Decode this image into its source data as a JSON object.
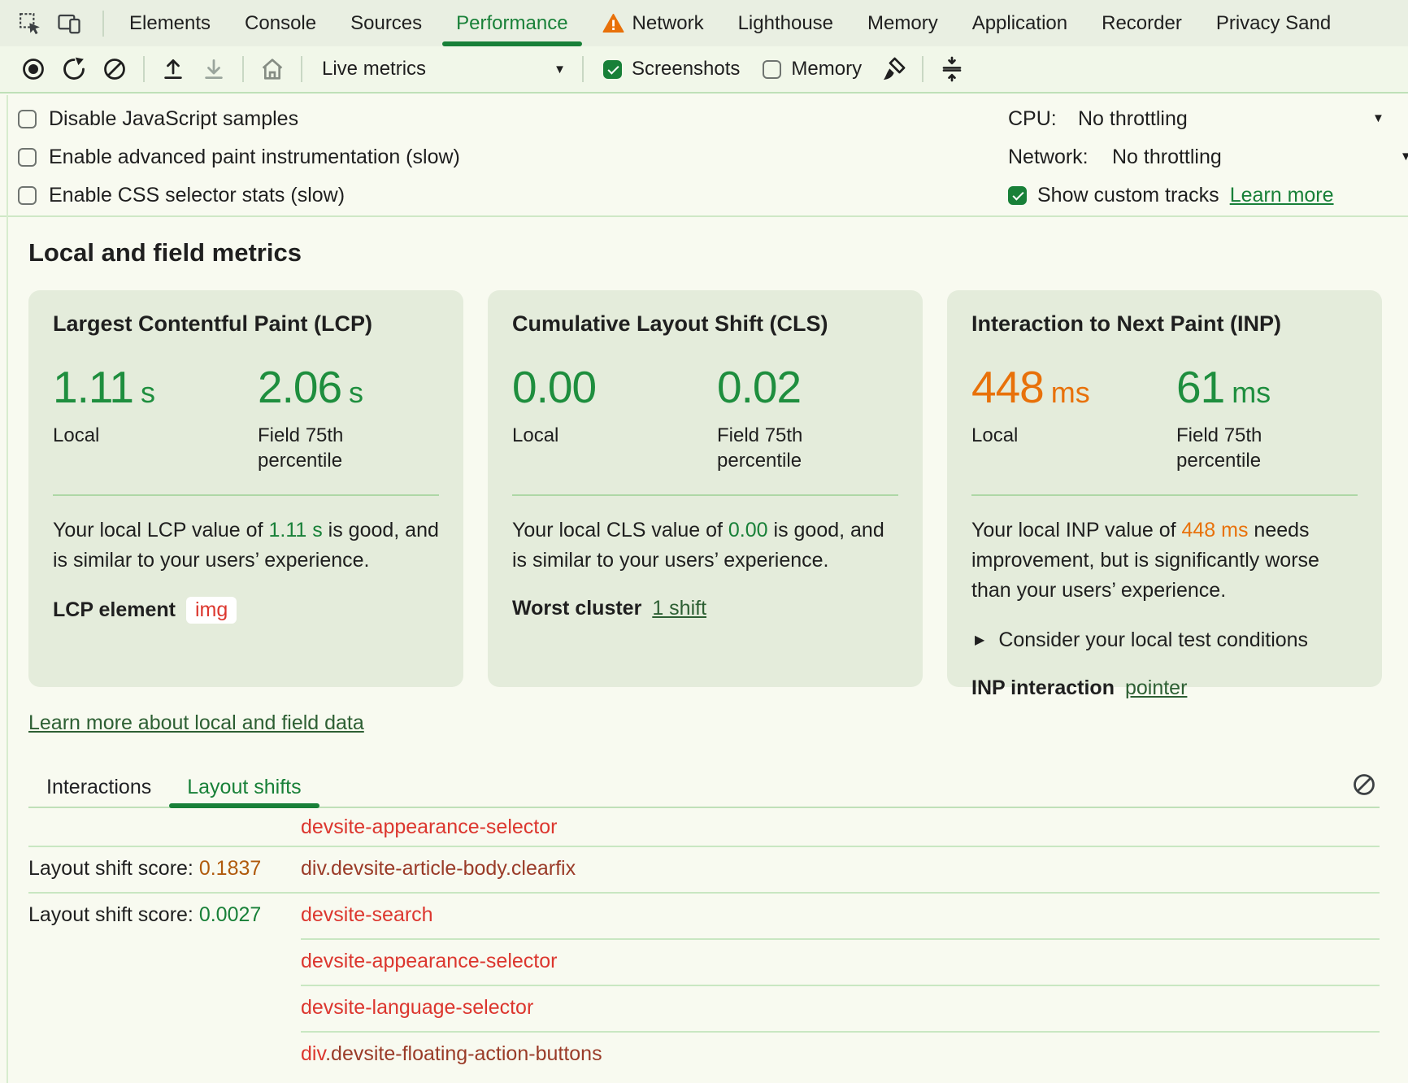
{
  "colors": {
    "accent_green": "#188038",
    "metric_green": "#1e8e3e",
    "metric_orange": "#e8710a",
    "link_green": "#188038",
    "link_dark": "#2d5f33",
    "selector_red": "#dc362e",
    "selector_dark": "#9a3b28",
    "score_bad": "#b05a0c",
    "score_good": "#188038",
    "chip_red": "#dc362e",
    "text": "#1f1f1f"
  },
  "tabs": {
    "items": [
      {
        "label": "Elements",
        "active": false
      },
      {
        "label": "Console",
        "active": false
      },
      {
        "label": "Sources",
        "active": false
      },
      {
        "label": "Performance",
        "active": true
      },
      {
        "label": "Network",
        "active": false,
        "warning": true
      },
      {
        "label": "Lighthouse",
        "active": false
      },
      {
        "label": "Memory",
        "active": false
      },
      {
        "label": "Application",
        "active": false
      },
      {
        "label": "Recorder",
        "active": false
      },
      {
        "label": "Privacy Sand",
        "active": false
      }
    ]
  },
  "toolbar": {
    "live_metrics_label": "Live metrics",
    "screenshots_label": "Screenshots",
    "screenshots_checked": true,
    "memory_label": "Memory",
    "memory_checked": false
  },
  "settings": {
    "checkboxes": [
      {
        "label": "Disable JavaScript samples",
        "checked": false
      },
      {
        "label": "Enable advanced paint instrumentation (slow)",
        "checked": false
      },
      {
        "label": "Enable CSS selector stats (slow)",
        "checked": false
      }
    ],
    "cpu_label": "CPU:",
    "cpu_value": "No throttling",
    "network_label": "Network:",
    "network_value": "No throttling",
    "custom_tracks_label": "Show custom tracks",
    "custom_tracks_checked": true,
    "custom_tracks_link": "Learn more"
  },
  "metrics": {
    "heading": "Local and field metrics",
    "cards": [
      {
        "title": "Largest Contentful Paint (LCP)",
        "local_num": "1.11",
        "local_unit": "s",
        "local_color": "#1e8e3e",
        "local_label": "Local",
        "field_num": "2.06",
        "field_unit": "s",
        "field_color": "#1e8e3e",
        "field_label": "Field 75th percentile",
        "desc_parts": [
          {
            "text": "Your local LCP value of "
          },
          {
            "text": "1.11 s",
            "color": "#188038"
          },
          {
            "text": " is good, and is similar to your users’ experience."
          }
        ],
        "footer_label": "LCP element",
        "footer_chip": "img"
      },
      {
        "title": "Cumulative Layout Shift (CLS)",
        "local_num": "0.00",
        "local_unit": "",
        "local_color": "#1e8e3e",
        "local_label": "Local",
        "field_num": "0.02",
        "field_unit": "",
        "field_color": "#1e8e3e",
        "field_label": "Field 75th percentile",
        "desc_parts": [
          {
            "text": "Your local CLS value of "
          },
          {
            "text": "0.00",
            "color": "#188038"
          },
          {
            "text": " is good, and is similar to your users’ experience."
          }
        ],
        "footer_label": "Worst cluster",
        "footer_link": "1 shift"
      },
      {
        "title": "Interaction to Next Paint (INP)",
        "local_num": "448",
        "local_unit": "ms",
        "local_color": "#e8710a",
        "local_label": "Local",
        "field_num": "61",
        "field_unit": "ms",
        "field_color": "#1e8e3e",
        "field_label": "Field 75th percentile",
        "desc_parts": [
          {
            "text": "Your local INP value of "
          },
          {
            "text": "448 ms",
            "color": "#e8710a"
          },
          {
            "text": " needs improvement, but is significantly worse than your users’ experience."
          }
        ],
        "disclosure_label": "Consider your local test conditions",
        "footer_label": "INP interaction",
        "footer_link": "pointer"
      }
    ],
    "learn_more_link": "Learn more about local and field data"
  },
  "logs": {
    "tabs": [
      {
        "label": "Interactions",
        "active": false
      },
      {
        "label": "Layout shifts",
        "active": true
      }
    ],
    "rows": [
      {
        "selector_parts": [
          {
            "text": "devsite-appearance-selector",
            "color": "#dc362e"
          }
        ]
      },
      {
        "score_label": "Layout shift score: ",
        "score_value": "0.1837",
        "score_color": "#b05a0c",
        "selector_parts": [
          {
            "text": "div.devsite-article-body.clearfix",
            "color": "#9a3b28"
          }
        ]
      },
      {
        "score_label": "Layout shift score: ",
        "score_value": "0.0027",
        "score_color": "#188038",
        "selector_parts": [
          {
            "text": "devsite-search",
            "color": "#dc362e"
          }
        ]
      },
      {
        "selector_parts": [
          {
            "text": "devsite-appearance-selector",
            "color": "#dc362e"
          }
        ]
      },
      {
        "selector_parts": [
          {
            "text": "devsite-language-selector",
            "color": "#dc362e"
          }
        ]
      },
      {
        "selector_parts": [
          {
            "text": "div",
            "color": "#dc362e"
          },
          {
            "text": ".devsite-floating-action-buttons",
            "color": "#9a3b28"
          }
        ]
      }
    ]
  }
}
